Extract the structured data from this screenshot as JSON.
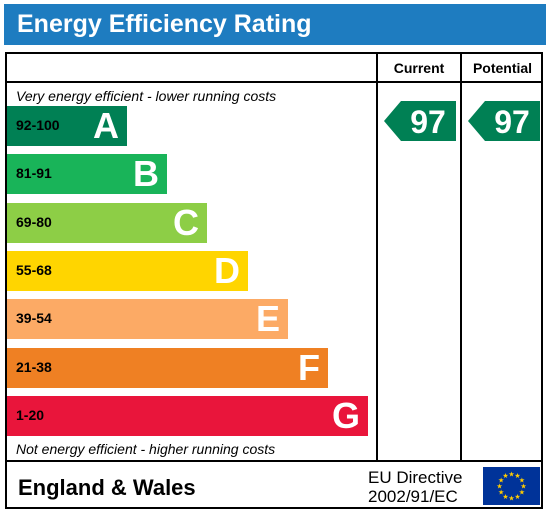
{
  "title": "Energy Efficiency Rating",
  "columns": {
    "current": "Current",
    "potential": "Potential"
  },
  "notes": {
    "top": "Very energy efficient - lower running costs",
    "bottom": "Not energy efficient - higher running costs"
  },
  "bands": [
    {
      "range": "92-100",
      "letter": "A",
      "color": "#008054",
      "range_color": "#000000"
    },
    {
      "range": "81-91",
      "letter": "B",
      "color": "#19b459",
      "range_color": "#000000"
    },
    {
      "range": "69-80",
      "letter": "C",
      "color": "#8dce46",
      "range_color": "#000000"
    },
    {
      "range": "55-68",
      "letter": "D",
      "color": "#ffd500",
      "range_color": "#000000"
    },
    {
      "range": "39-54",
      "letter": "E",
      "color": "#fcaa65",
      "range_color": "#000000"
    },
    {
      "range": "21-38",
      "letter": "F",
      "color": "#ef8023",
      "range_color": "#000000"
    },
    {
      "range": "1-20",
      "letter": "G",
      "color": "#e9153b",
      "range_color": "#000000"
    }
  ],
  "ratings": {
    "current": {
      "value": "97",
      "color": "#008054"
    },
    "potential": {
      "value": "97",
      "color": "#008054"
    }
  },
  "footer": {
    "country": "England & Wales",
    "directive_line1": "EU Directive",
    "directive_line2": "2002/91/EC",
    "flag_icon": "eu-flag-icon",
    "flag_color": "#003399",
    "star_color": "#ffcc00"
  }
}
